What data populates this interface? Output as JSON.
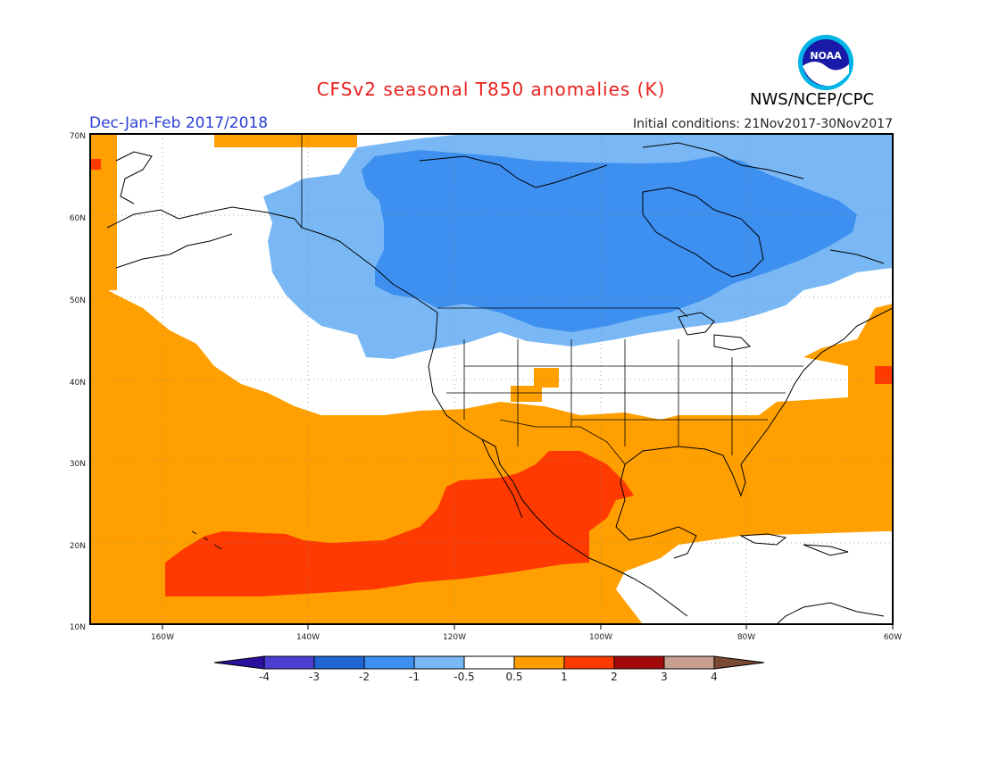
{
  "title": "CFSv2 seasonal T850 anomalies (K)",
  "season": "Dec-Jan-Feb 2017/2018",
  "initial_conditions": "Initial conditions: 21Nov2017-30Nov2017",
  "organization": "NWS/NCEP/CPC",
  "logo_text": "NOAA",
  "lat_labels": [
    "70N",
    "60N",
    "50N",
    "40N",
    "30N",
    "20N",
    "10N"
  ],
  "lon_labels": [
    "160W",
    "140W",
    "120W",
    "100W",
    "80W",
    "60W"
  ],
  "colorbar": {
    "labels": [
      "-4",
      "-3",
      "-2",
      "-1",
      "-0.5",
      "0.5",
      "1",
      "2",
      "3",
      "4"
    ],
    "colors": [
      "#2b0f9e",
      "#4a3fd1",
      "#2266d6",
      "#3d8ff0",
      "#7ab8f5",
      "#ffffff",
      "#ff9d00",
      "#ff3a00",
      "#a30a0a",
      "#c8a090",
      "#7a4a35"
    ]
  },
  "map_colors": {
    "ocean_warm": "#ffa000",
    "warm_2": "#ff3a00",
    "neutral": "#ffffff",
    "cold_1": "#7ab8f5",
    "cold_2": "#3d8ff0",
    "land_lines": "#000000"
  }
}
